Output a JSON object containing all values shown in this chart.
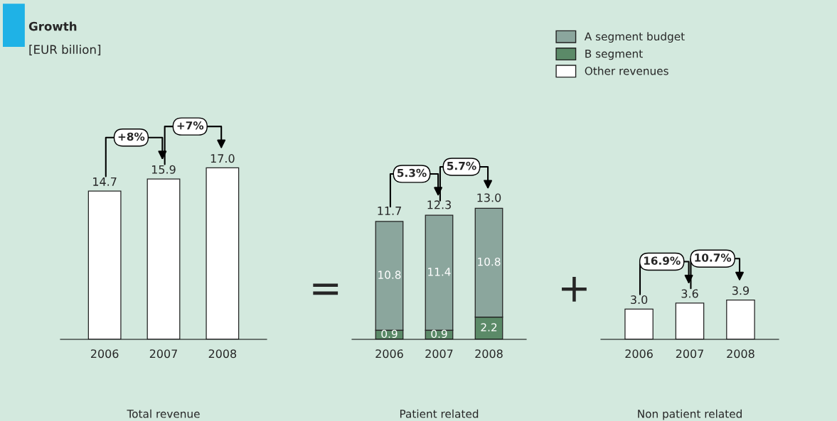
{
  "chart_data": [
    {
      "type": "bar",
      "title": "Growth",
      "subtitle": "[EUR billion]",
      "xlabel": "Total revenue",
      "categories": [
        "2006",
        "2007",
        "2008"
      ],
      "series": [
        {
          "color": "#ffffff",
          "values": [
            14.7,
            15.9,
            17.0
          ],
          "value_labels": [
            "14.7",
            "15.9",
            "17.0"
          ]
        }
      ],
      "annotations": [
        "+8%",
        "+7%"
      ]
    },
    {
      "type": "bar",
      "xlabel": "Patient related",
      "categories": [
        "2006",
        "2007",
        "2008"
      ],
      "stacked": true,
      "legend": "top right",
      "series": [
        {
          "name": "B segment",
          "color": "#5b8a68",
          "values": [
            0.9,
            0.9,
            2.2
          ]
        },
        {
          "name": "A segment budget",
          "color": "#8ba69d",
          "values": [
            10.8,
            11.4,
            10.8
          ]
        }
      ],
      "data_labels": true,
      "totals": [
        "11.7",
        "12.3",
        "13.0"
      ],
      "annotations": [
        "5.3%",
        "5.7%",
        "="
      ]
    },
    {
      "type": "bar",
      "xlabel": "Non patient related",
      "categories": [
        "2006",
        "2007",
        "2008"
      ],
      "legend": "top left",
      "series": [
        {
          "name": "Other revenues",
          "color": "#ffffff",
          "values": [
            3.0,
            3.6,
            3.9
          ],
          "value_labels": [
            "3.0",
            "3.6",
            "3.9"
          ]
        }
      ],
      "annotations": [
        "16.9%",
        "10.7%",
        "+"
      ]
    }
  ]
}
